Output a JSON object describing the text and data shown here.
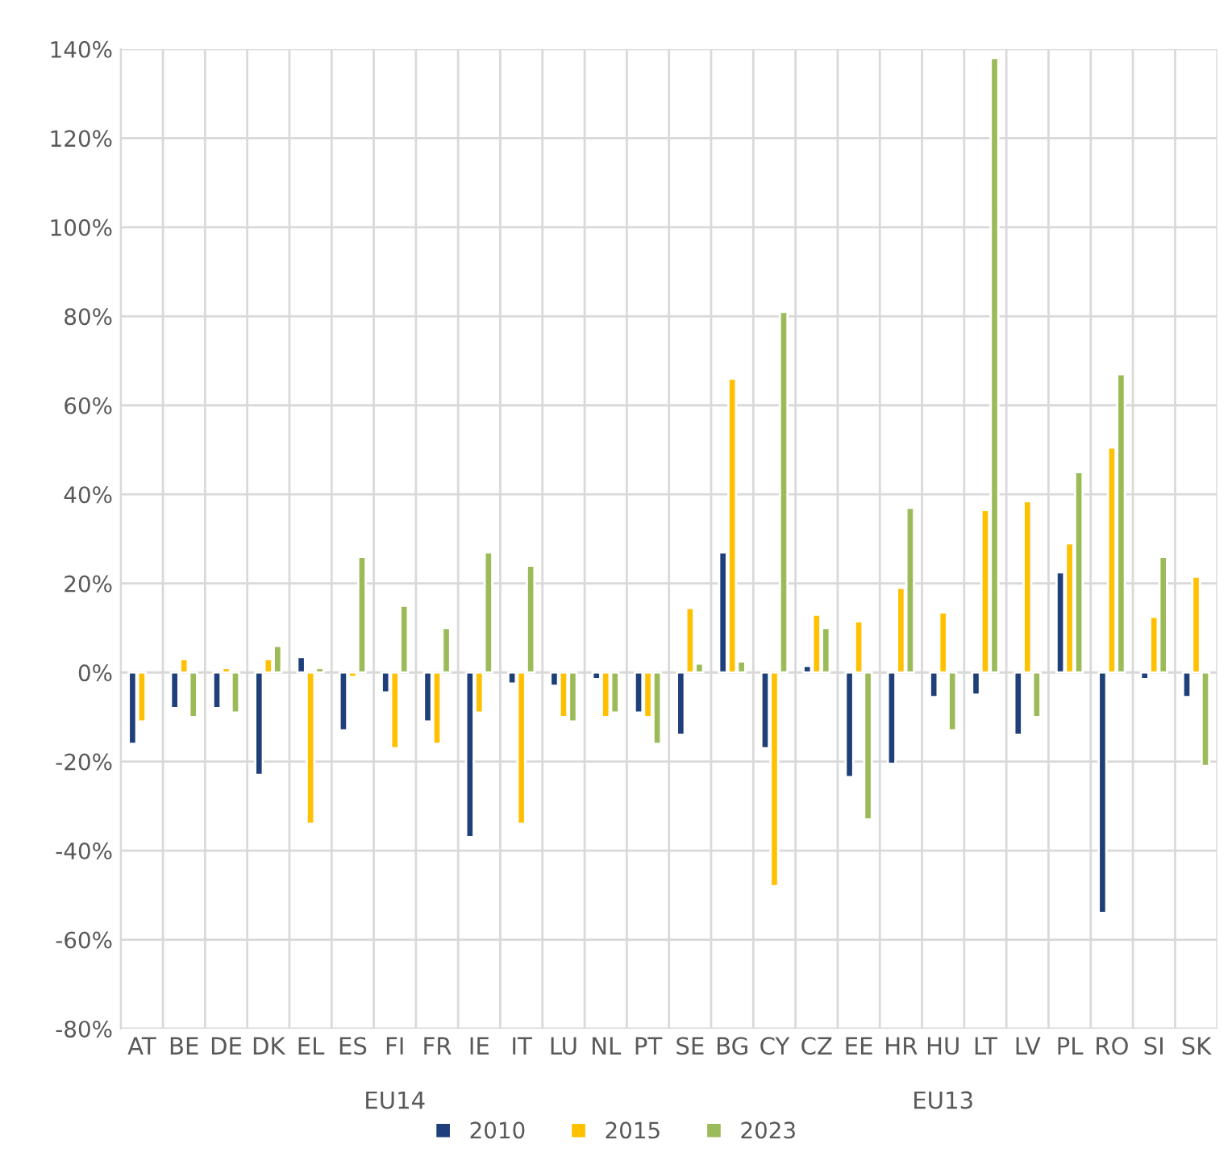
{
  "chart_data": {
    "type": "bar",
    "categories": [
      "AT",
      "BE",
      "DE",
      "DK",
      "EL",
      "ES",
      "FI",
      "FR",
      "IE",
      "IT",
      "LU",
      "NL",
      "PT",
      "SE",
      "BG",
      "CY",
      "CZ",
      "EE",
      "HR",
      "HU",
      "LT",
      "LV",
      "PL",
      "RO",
      "SI",
      "SK"
    ],
    "series": [
      {
        "name": "2010",
        "color": "#1f3f7a",
        "values": [
          -16,
          -8,
          -8,
          -23,
          3.5,
          -13,
          -4.5,
          -11,
          -37,
          -2.5,
          -3,
          -1.5,
          -9,
          -14,
          27,
          -17,
          1.5,
          -23.5,
          -20.5,
          -5.5,
          -5,
          -14,
          22.5,
          -54,
          -1.5,
          -5.5
        ]
      },
      {
        "name": "2015",
        "color": "#ffc000",
        "values": [
          -11,
          3,
          1,
          3,
          -34,
          -1,
          -17,
          -16,
          -9,
          -34,
          -10,
          -10,
          -10,
          14.5,
          66,
          -48,
          13,
          11.5,
          19,
          13.5,
          36.5,
          38.5,
          29,
          50.5,
          12.5,
          21.5
        ]
      },
      {
        "name": "2023",
        "color": "#9bbb59",
        "values": [
          null,
          -10,
          -9,
          6,
          1,
          26,
          15,
          10,
          27,
          24,
          -11,
          -9,
          -16,
          2,
          2.5,
          81,
          10,
          -33,
          37,
          -13,
          138,
          -10,
          45,
          67,
          26,
          -21
        ]
      }
    ],
    "ylim": [
      -80,
      140
    ],
    "yticks": [
      {
        "value": -80,
        "label": "-80%"
      },
      {
        "value": -60,
        "label": "-60%"
      },
      {
        "value": -40,
        "label": "-40%"
      },
      {
        "value": -20,
        "label": "-20%"
      },
      {
        "value": 0,
        "label": "0%"
      },
      {
        "value": 20,
        "label": "20%"
      },
      {
        "value": 40,
        "label": "40%"
      },
      {
        "value": 60,
        "label": "60%"
      },
      {
        "value": 80,
        "label": "80%"
      },
      {
        "value": 100,
        "label": "100%"
      },
      {
        "value": 120,
        "label": "120%"
      },
      {
        "value": 140,
        "label": "140%"
      }
    ],
    "annotations": [
      "EU14",
      "EU13"
    ],
    "grid": true,
    "legend": "bottom"
  }
}
